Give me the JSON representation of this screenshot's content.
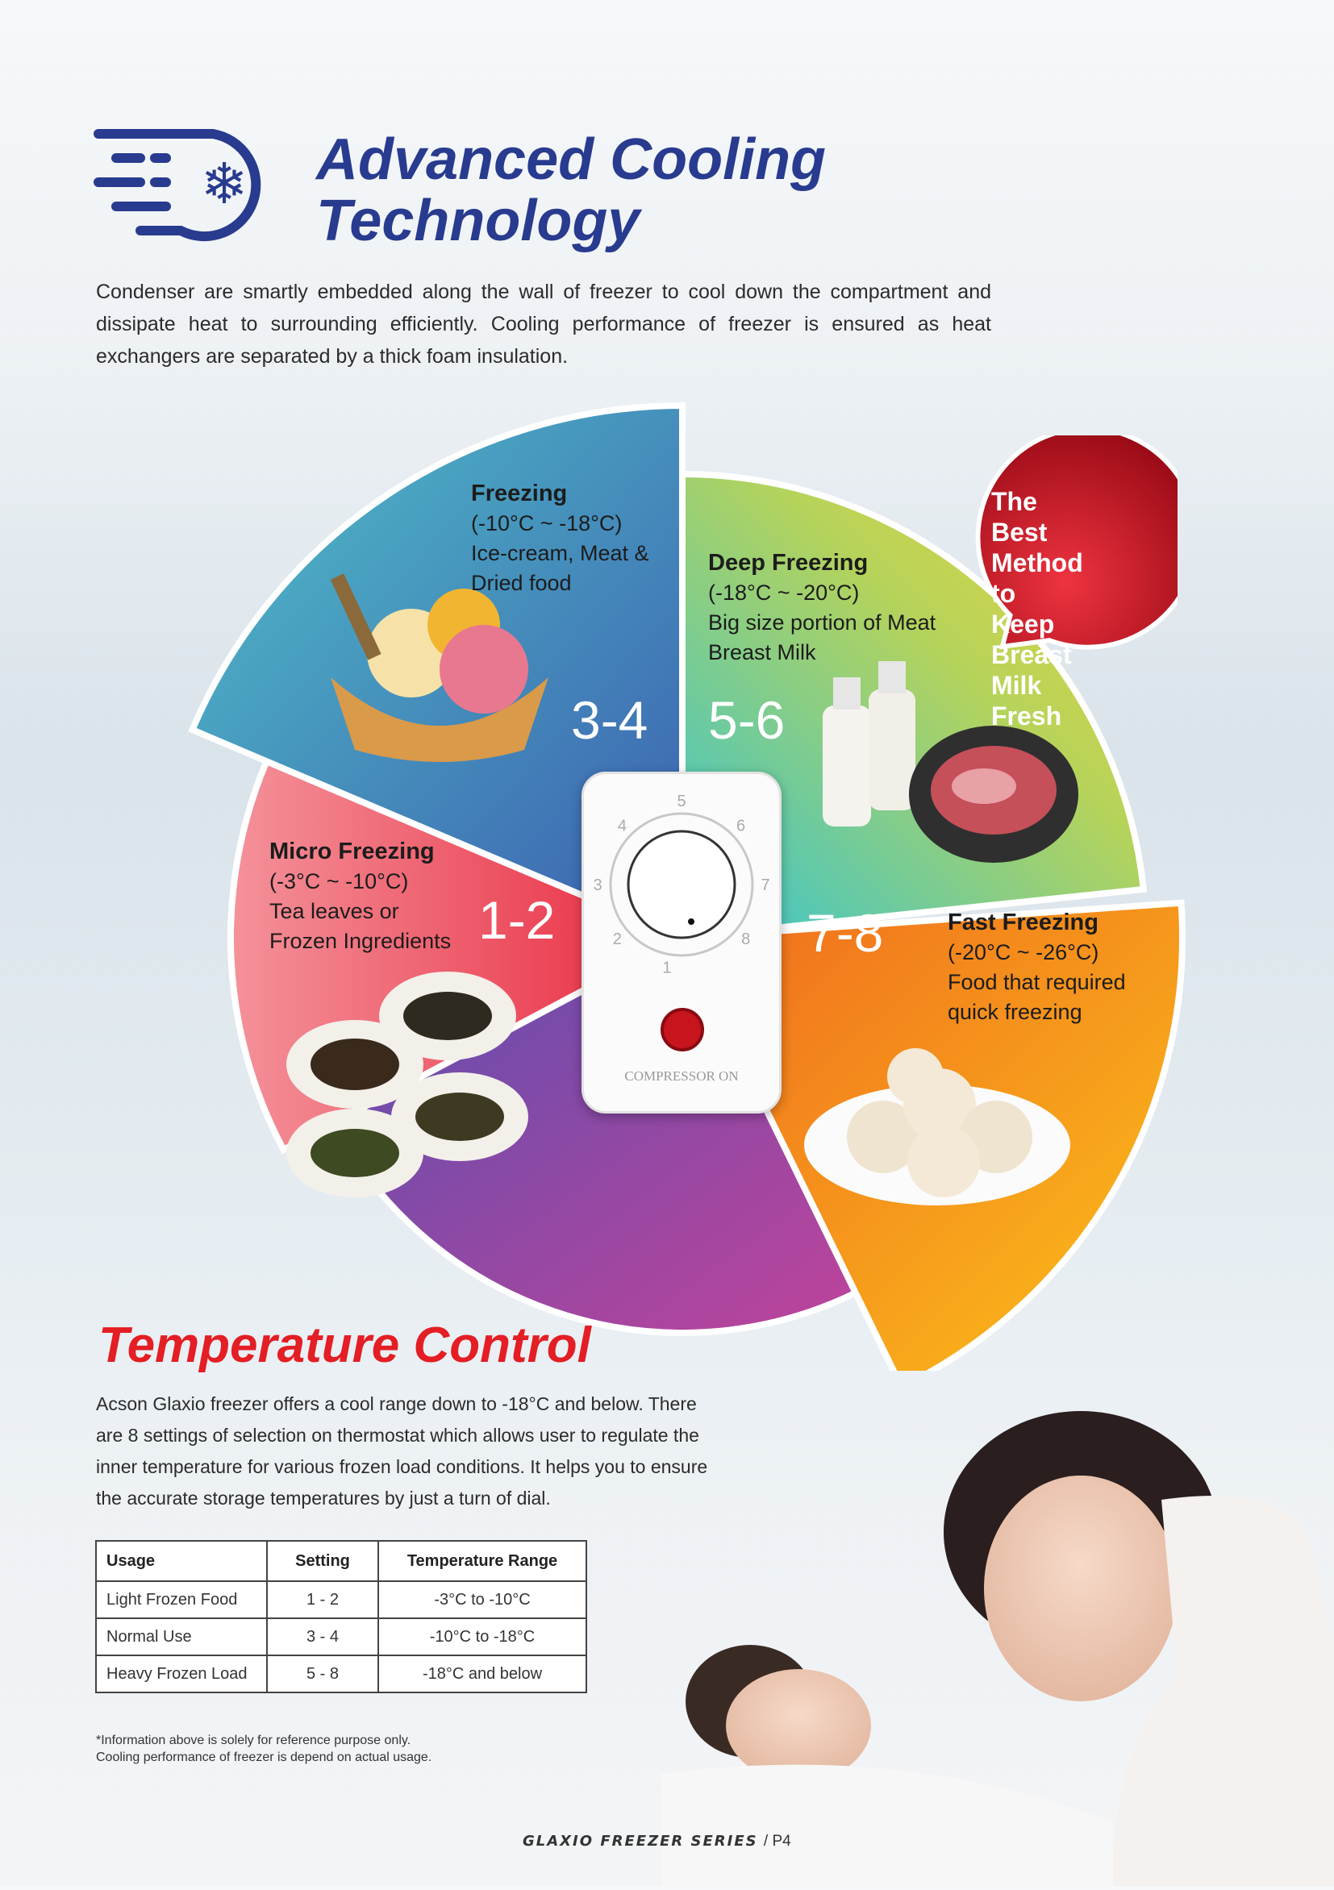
{
  "header": {
    "title_line1": "Advanced Cooling",
    "title_line2": "Technology",
    "icon": "snowflake-speed-icon",
    "intro": "Condenser are smartly embedded along the wall of freezer to cool down the compartment and dissipate heat to surrounding efficiently. Cooling performance of freezer is ensured as heat exchangers are separated by a thick foam insulation."
  },
  "wheel": {
    "freezing": {
      "title": "Freezing",
      "range": "(-10°C ~ -18°C)",
      "desc1": "Ice-cream, Meat &",
      "desc2": "Dried food",
      "setting": "3-4",
      "color": "#3a8fc4"
    },
    "deep": {
      "title": "Deep Freezing",
      "range": "(-18°C ~ -20°C)",
      "desc1": "Big size portion of Meat",
      "desc2": "Breast Milk",
      "setting": "5-6",
      "color": "#a9cf5a"
    },
    "micro": {
      "title": "Micro Freezing",
      "range": "(-3°C ~ -10°C)",
      "desc1": "Tea leaves or",
      "desc2": "Frozen Ingredients",
      "setting": "1-2",
      "color": "#ea3f4f"
    },
    "fast": {
      "title": "Fast Freezing",
      "range": "(-20°C ~ -26°C)",
      "desc1": "Food that required",
      "desc2": "quick freezing",
      "setting": "7-8",
      "color": "#f5a01a"
    },
    "bubble": {
      "line1": "The Best",
      "line2": "Method to",
      "line3": "Keep Breast",
      "line4": "Milk Fresh",
      "color": "#c3121f"
    },
    "controller": {
      "dial_numbers": [
        "1",
        "2",
        "3",
        "4",
        "5",
        "6",
        "7",
        "8"
      ],
      "indicator_label": "COMPRESSOR ON"
    }
  },
  "temperature": {
    "title": "Temperature Control",
    "text": "Acson Glaxio freezer offers a cool range down to -18°C and below. There are 8 settings of selection on thermostat which allows user to regulate the inner temperature for various frozen load conditions. It helps you to ensure the accurate storage temperatures by just a turn of dial.",
    "table": {
      "headers": [
        "Usage",
        "Setting",
        "Temperature Range"
      ],
      "rows": [
        [
          "Light Frozen Food",
          "1 - 2",
          "-3°C  to -10°C"
        ],
        [
          "Normal Use",
          "3 - 4",
          "-10°C to -18°C"
        ],
        [
          "Heavy Frozen Load",
          "5 - 8",
          "-18°C and below"
        ]
      ]
    },
    "note1": "*Information above is solely for reference purpose only.",
    "note2": "Cooling performance of freezer is depend on actual usage."
  },
  "footer": {
    "series": "GLAXIO FREEZER SERIES",
    "page": "/ P4"
  }
}
